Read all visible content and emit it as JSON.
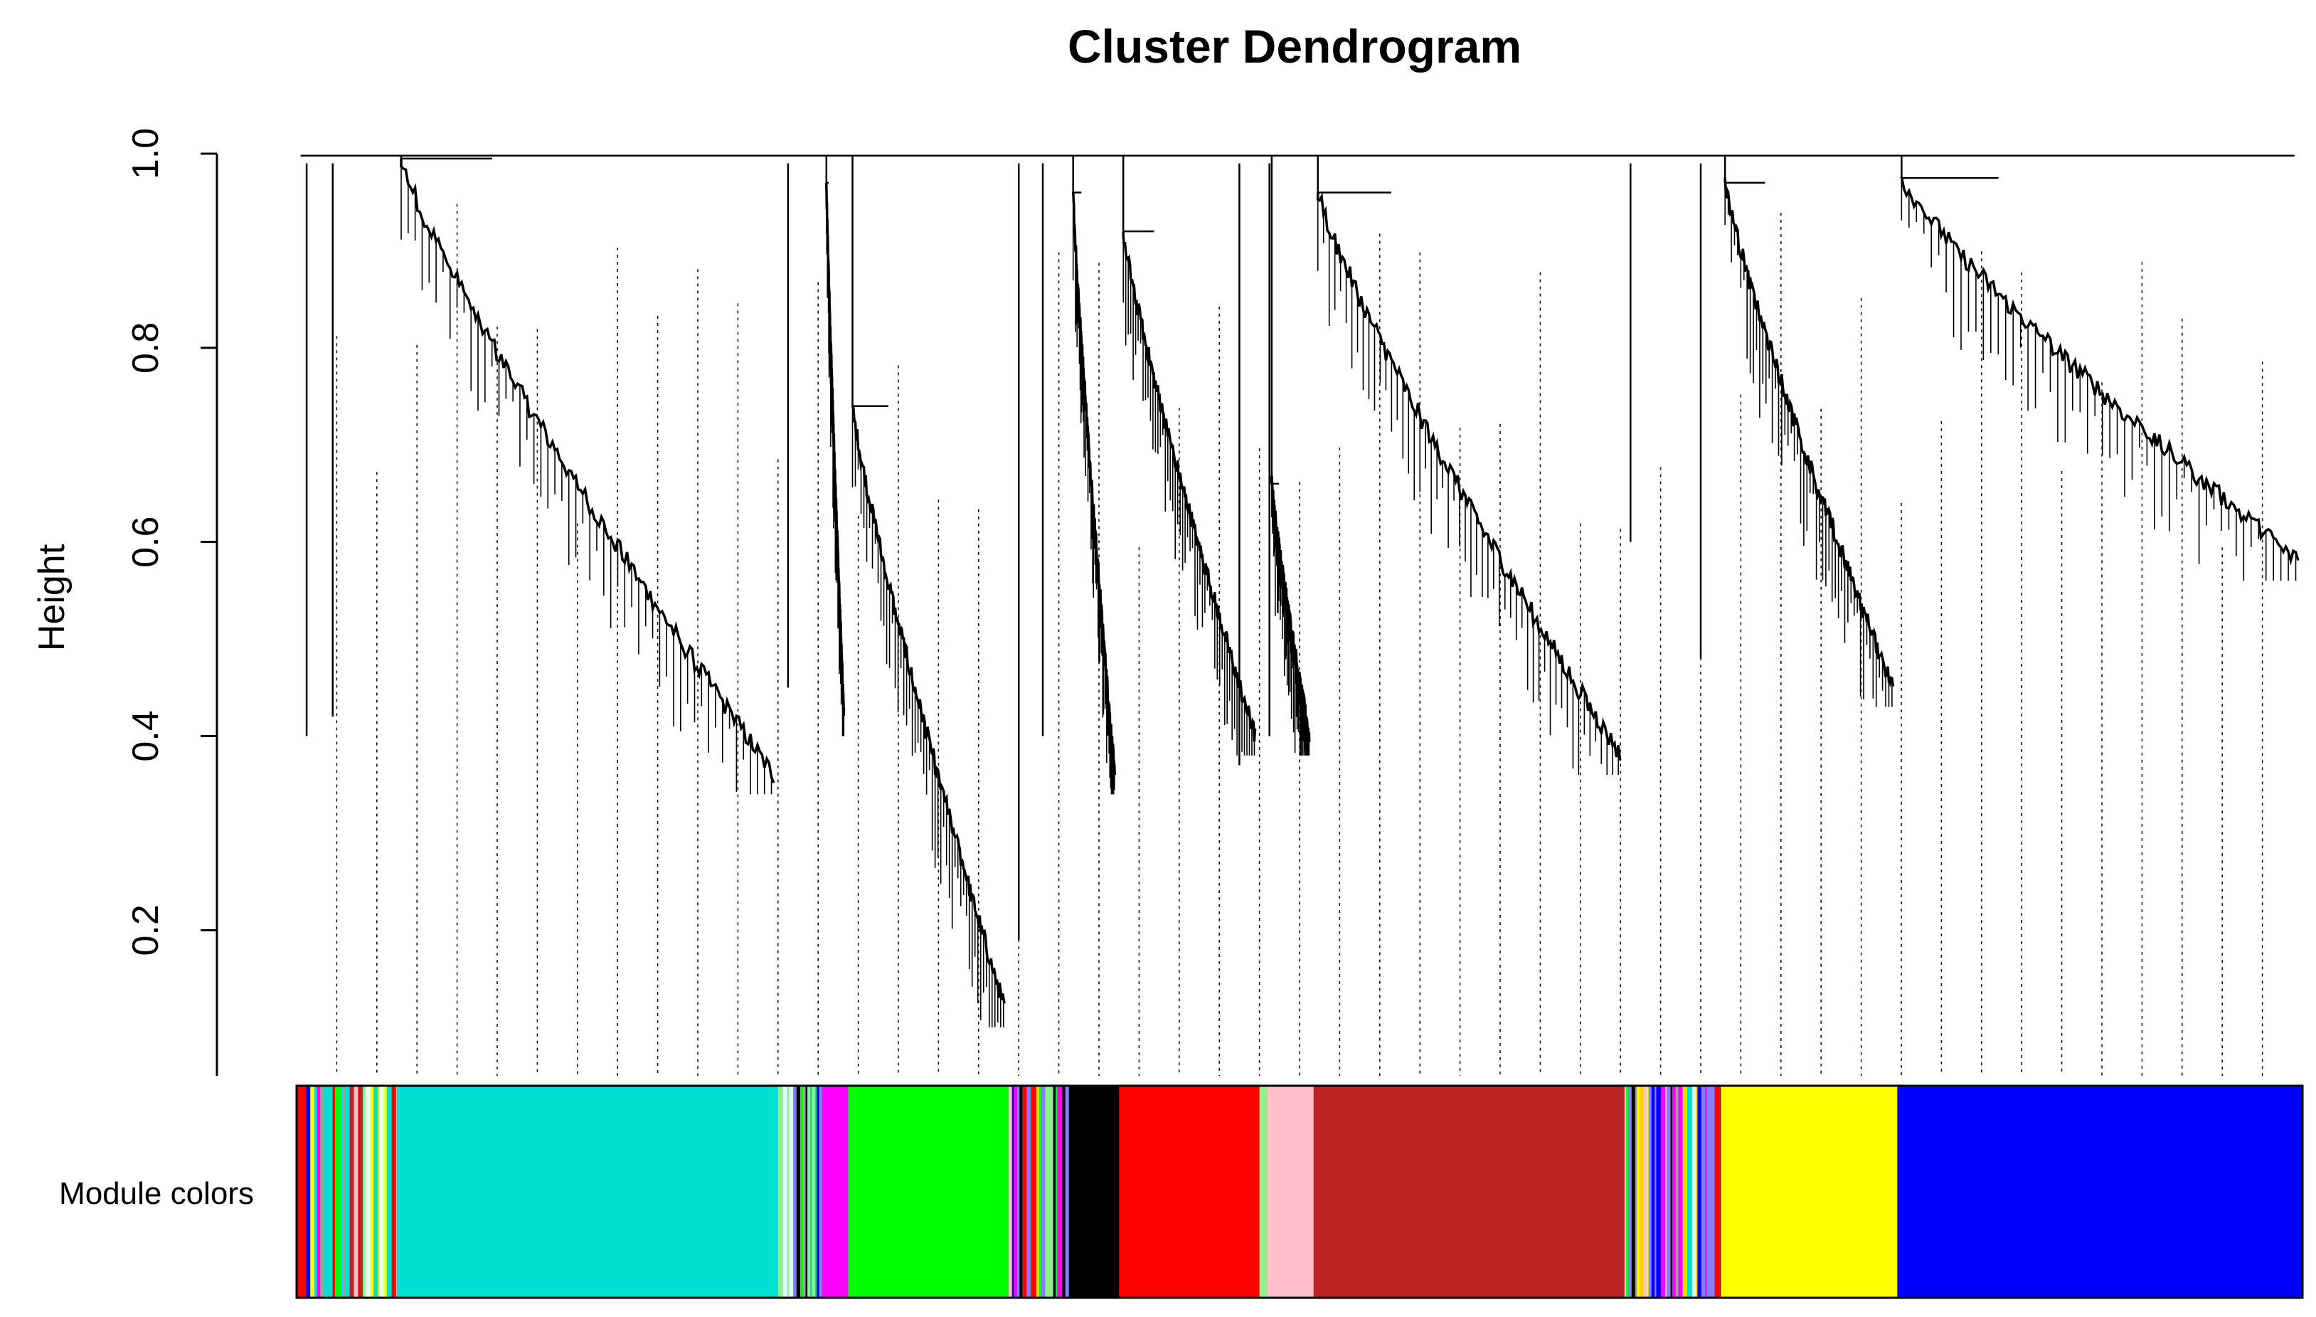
{
  "chart_data": {
    "type": "dendrogram",
    "title": "Cluster Dendrogram",
    "ylabel": "Height",
    "xlabel": "",
    "ylim": [
      0.05,
      1.0
    ],
    "y_ticks": [
      "0.2",
      "0.4",
      "0.6",
      "0.8",
      "1.0"
    ],
    "y_tick_values": [
      0.2,
      0.4,
      0.6,
      0.8,
      1.0
    ],
    "grid": false,
    "module_row_label": "Module colors",
    "leaf_order_range": [
      0,
      1000
    ],
    "clusters": [
      {
        "color": "#00e0d0",
        "leaf_start": 50,
        "leaf_end": 240,
        "merge_height": 0.995,
        "min_height": 0.36
      },
      {
        "color": "#ff00ff",
        "leaf_start": 262,
        "leaf_end": 275,
        "merge_height": 0.97,
        "min_height": 0.42
      },
      {
        "color": "#00ff00",
        "leaf_start": 275,
        "leaf_end": 355,
        "merge_height": 0.74,
        "min_height": 0.12
      },
      {
        "color": "#000000",
        "leaf_start": 385,
        "leaf_end": 410,
        "merge_height": 0.96,
        "min_height": 0.36
      },
      {
        "color": "#ff0000",
        "leaf_start": 410,
        "leaf_end": 480,
        "merge_height": 0.92,
        "min_height": 0.4
      },
      {
        "color": "#ffc0cb",
        "leaf_start": 484,
        "leaf_end": 507,
        "merge_height": 0.66,
        "min_height": 0.4
      },
      {
        "color": "#be2323",
        "leaf_start": 507,
        "leaf_end": 662,
        "merge_height": 0.96,
        "min_height": 0.38
      },
      {
        "color": "#ffff00",
        "leaf_start": 710,
        "leaf_end": 798,
        "merge_height": 0.97,
        "min_height": 0.45
      },
      {
        "color": "#0000ff",
        "leaf_start": 798,
        "leaf_end": 1000,
        "merge_height": 0.975,
        "min_height": 0.58
      }
    ],
    "color_bar": [
      {
        "from": 0,
        "to": 50,
        "color": "mixed"
      },
      {
        "from": 50,
        "to": 240,
        "color": "#00e0d0"
      },
      {
        "from": 240,
        "to": 262,
        "color": "mixed"
      },
      {
        "from": 262,
        "to": 275,
        "color": "#ff00ff"
      },
      {
        "from": 275,
        "to": 355,
        "color": "#00ff00"
      },
      {
        "from": 355,
        "to": 385,
        "color": "mixed"
      },
      {
        "from": 385,
        "to": 410,
        "color": "#000000"
      },
      {
        "from": 410,
        "to": 480,
        "color": "#ff0000"
      },
      {
        "from": 480,
        "to": 484,
        "color": "mixed"
      },
      {
        "from": 484,
        "to": 507,
        "color": "#ffc0cb"
      },
      {
        "from": 507,
        "to": 662,
        "color": "#be2323"
      },
      {
        "from": 662,
        "to": 710,
        "color": "mixed"
      },
      {
        "from": 710,
        "to": 798,
        "color": "#ffff00"
      },
      {
        "from": 798,
        "to": 1000,
        "color": "#0000ff"
      }
    ],
    "mixed_palette": [
      "#ffc0cb",
      "#00e0d0",
      "#ff00ff",
      "#a0a0a0",
      "#ffff00",
      "#0000ff",
      "#be2323",
      "#00ff00",
      "#ff0000",
      "#000000",
      "#90ee90",
      "#e0ffff",
      "#ffd700",
      "#8080ff"
    ]
  }
}
